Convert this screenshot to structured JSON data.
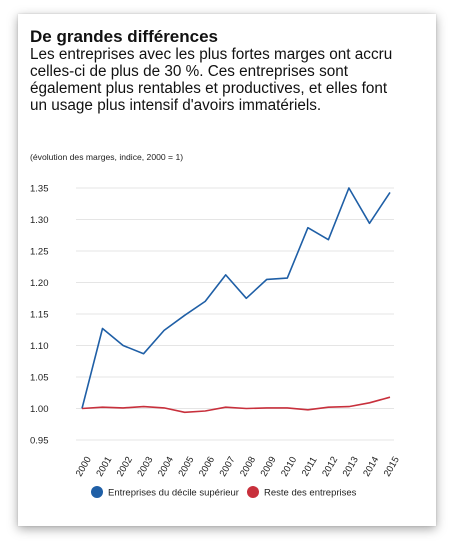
{
  "header": {
    "title": "De grandes différences",
    "subtitle": "Les entreprises avec les plus fortes marges ont accru celles-ci de plus de 30 %. Ces entreprises sont également plus rentables et productives, et elles font un usage plus intensif d'avoirs immatériels.",
    "note": "(évolution des marges, indice, 2000 = 1)"
  },
  "chart_data": {
    "type": "line",
    "title": "De grandes différences",
    "subtitle": "(évolution des marges, indice, 2000 = 1)",
    "xlabel": "",
    "ylabel": "",
    "x": [
      "2000",
      "2001",
      "2002",
      "2003",
      "2004",
      "2005",
      "2006",
      "2007",
      "2008",
      "2009",
      "2010",
      "2011",
      "2012",
      "2013",
      "2014",
      "2015"
    ],
    "ylim": [
      0.95,
      1.35
    ],
    "yticks": [
      "0.95",
      "1.00",
      "1.05",
      "1.10",
      "1.15",
      "1.20",
      "1.25",
      "1.30",
      "1.35"
    ],
    "grid": "horizontal",
    "legend_position": "bottom",
    "series": [
      {
        "name": "Entreprises du décile supérieur",
        "color": "#1f5fa6",
        "values": [
          1.0,
          1.127,
          1.1,
          1.087,
          1.124,
          1.148,
          1.17,
          1.212,
          1.175,
          1.205,
          1.207,
          1.287,
          1.268,
          1.35,
          1.294,
          1.343
        ]
      },
      {
        "name": "Reste des entreprises",
        "color": "#c8303c",
        "values": [
          1.0,
          1.002,
          1.001,
          1.003,
          1.001,
          0.994,
          0.996,
          1.002,
          1.0,
          1.001,
          1.001,
          0.998,
          1.002,
          1.003,
          1.009,
          1.018
        ]
      }
    ]
  }
}
